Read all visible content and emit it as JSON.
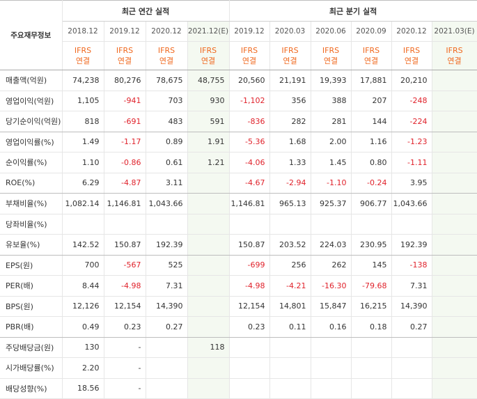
{
  "header": {
    "corner_label": "주요재무정보",
    "annual_group": "최근 연간 실적",
    "quarter_group": "최근 분기 실적",
    "annual_dates": [
      "2018.12",
      "2019.12",
      "2020.12",
      "2021.12(E)"
    ],
    "quarter_dates": [
      "2019.12",
      "2020.03",
      "2020.06",
      "2020.09",
      "2020.12",
      "2021.03(E)"
    ],
    "ifrs_line1": "IFRS",
    "ifrs_line2": "연결"
  },
  "rows": [
    {
      "label": "매출액(억원)",
      "values": [
        "74,238",
        "80,276",
        "78,675",
        "48,755",
        "20,560",
        "21,191",
        "19,393",
        "17,881",
        "20,210",
        ""
      ]
    },
    {
      "label": "영업이익(억원)",
      "values": [
        "1,105",
        "-941",
        "703",
        "930",
        "-1,102",
        "356",
        "388",
        "207",
        "-248",
        ""
      ]
    },
    {
      "label": "당기순이익(억원)",
      "values": [
        "818",
        "-691",
        "483",
        "591",
        "-836",
        "282",
        "281",
        "144",
        "-224",
        ""
      ]
    },
    {
      "label": "영업이익률(%)",
      "values": [
        "1.49",
        "-1.17",
        "0.89",
        "1.91",
        "-5.36",
        "1.68",
        "2.00",
        "1.16",
        "-1.23",
        ""
      ]
    },
    {
      "label": "순이익률(%)",
      "values": [
        "1.10",
        "-0.86",
        "0.61",
        "1.21",
        "-4.06",
        "1.33",
        "1.45",
        "0.80",
        "-1.11",
        ""
      ]
    },
    {
      "label": "ROE(%)",
      "values": [
        "6.29",
        "-4.87",
        "3.11",
        "",
        "-4.67",
        "-2.94",
        "-1.10",
        "-0.24",
        "3.95",
        ""
      ]
    },
    {
      "label": "부채비율(%)",
      "values": [
        "1,082.14",
        "1,146.81",
        "1,043.66",
        "",
        "1,146.81",
        "965.13",
        "925.37",
        "906.77",
        "1,043.66",
        ""
      ]
    },
    {
      "label": "당좌비율(%)",
      "values": [
        "",
        "",
        "",
        "",
        "",
        "",
        "",
        "",
        "",
        ""
      ]
    },
    {
      "label": "유보율(%)",
      "values": [
        "142.52",
        "150.87",
        "192.39",
        "",
        "150.87",
        "203.52",
        "224.03",
        "230.95",
        "192.39",
        ""
      ]
    },
    {
      "label": "EPS(원)",
      "values": [
        "700",
        "-567",
        "525",
        "",
        "-699",
        "256",
        "262",
        "145",
        "-138",
        ""
      ]
    },
    {
      "label": "PER(배)",
      "values": [
        "8.44",
        "-4.98",
        "7.31",
        "",
        "-4.98",
        "-4.21",
        "-16.30",
        "-79.68",
        "7.31",
        ""
      ]
    },
    {
      "label": "BPS(원)",
      "values": [
        "12,126",
        "12,154",
        "14,390",
        "",
        "12,154",
        "14,801",
        "15,847",
        "16,215",
        "14,390",
        ""
      ]
    },
    {
      "label": "PBR(배)",
      "values": [
        "0.49",
        "0.23",
        "0.27",
        "",
        "0.23",
        "0.11",
        "0.16",
        "0.18",
        "0.27",
        ""
      ]
    },
    {
      "label": "주당배당금(원)",
      "values": [
        "130",
        "-",
        "",
        "118",
        "",
        "",
        "",
        "",
        "",
        ""
      ]
    },
    {
      "label": "시가배당률(%)",
      "values": [
        "2.20",
        "-",
        "",
        "",
        "",
        "",
        "",
        "",
        "",
        ""
      ]
    },
    {
      "label": "배당성향(%)",
      "values": [
        "18.56",
        "-",
        "",
        "",
        "",
        "",
        "",
        "",
        "",
        ""
      ]
    }
  ],
  "colors": {
    "negative": "#e0222b",
    "ifrs": "#f0681e",
    "estimate_bg": "#f4f9f1"
  }
}
